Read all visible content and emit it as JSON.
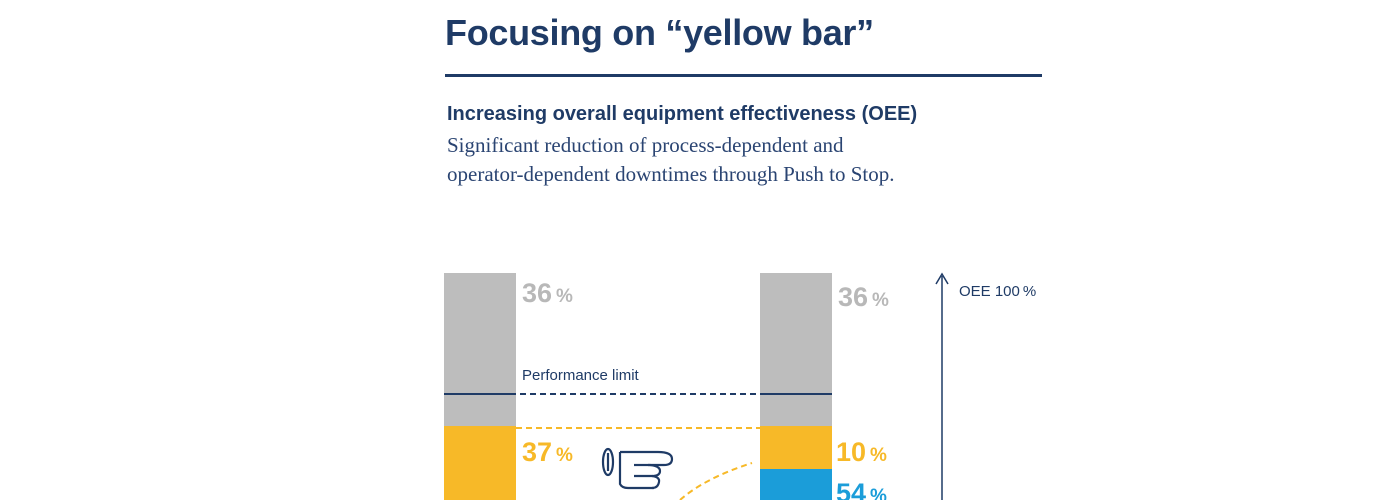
{
  "header": {
    "title": "Focusing on “yellow bar”",
    "subheading": "Increasing overall equipment effectiveness (OEE)",
    "description_line1": "Significant reduction of process-dependent and",
    "description_line2": "operator-dependent downtimes through Push to Stop."
  },
  "chart_data": {
    "type": "bar",
    "stacked": true,
    "categories": [
      "",
      ""
    ],
    "series": [
      {
        "color": "#bdbdbd",
        "values": [
          36,
          36
        ],
        "value_labels": [
          "36",
          "36"
        ]
      },
      {
        "color": "#f7b928",
        "values": [
          37,
          10
        ],
        "value_labels": [
          "37",
          "10"
        ]
      },
      {
        "color": "#1b9dd9",
        "values": [
          null,
          54
        ],
        "value_labels": [
          "",
          "54"
        ]
      }
    ],
    "percent_symbol": "%",
    "annotations": {
      "performance_limit": "Performance limit",
      "axis_label": "OEE 100 %"
    },
    "colors": {
      "navy": "#1f3b66",
      "grey": "#bdbdbd",
      "grey_text": "#b8b8b8",
      "yellow": "#f7b928",
      "blue": "#1b9dd9"
    },
    "icon": "pointing-hand-icon"
  }
}
